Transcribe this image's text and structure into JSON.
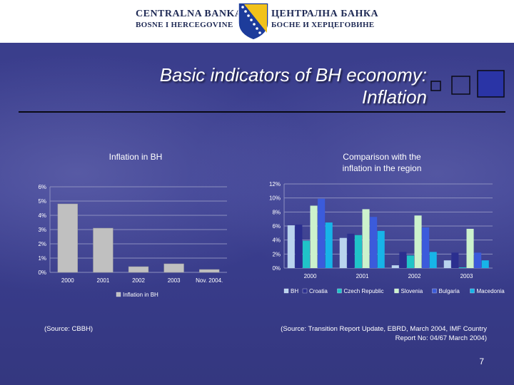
{
  "header": {
    "bank_name_latin_line1": "CENTRALNA BANKA",
    "bank_name_latin_line2": "BOSNE I HERCEGOVINE",
    "bank_name_cyrillic_line1": "ЦЕНТРАЛНА БАНКА",
    "bank_name_cyrillic_line2": "БОСНЕ И ХЕРЦЕГОВИНЕ"
  },
  "slide": {
    "title_line1": "Basic indicators of BH economy:",
    "title_line2": "Inflation",
    "page_number": "7",
    "source_left": "(Source: CBBH)",
    "source_right_line1": "(Source: Transition Report Update, EBRD, March 2004, IMF Country",
    "source_right_line2": "Report No: 04/67 March 2004)"
  },
  "colors": {
    "background": "#3b3f8f",
    "title_text": "#ffffff",
    "bar_gray": "#c0c0c0"
  },
  "chart_data": [
    {
      "type": "bar",
      "title": "Inflation in BH",
      "categories": [
        "2000",
        "2001",
        "2002",
        "2003",
        "Nov. 2004."
      ],
      "series": [
        {
          "name": "Inflation in BH",
          "color": "#c0c0c0",
          "values": [
            4.8,
            3.1,
            0.4,
            0.6,
            0.2
          ]
        }
      ],
      "yticks": [
        "0%",
        "1%",
        "2%",
        "3%",
        "4%",
        "5%",
        "6%"
      ],
      "ylim": [
        0,
        6
      ],
      "grid": true,
      "legend": "bottom"
    },
    {
      "type": "bar",
      "title_line1": "Comparison with the",
      "title_line2": "inflation in the region",
      "categories": [
        "2000",
        "2001",
        "2002",
        "2003"
      ],
      "series": [
        {
          "name": "BH",
          "color": "#b9d3ee",
          "values": [
            6.1,
            4.3,
            0.4,
            1.1
          ]
        },
        {
          "name": "Croatia",
          "color": "#2b2f8f",
          "values": [
            6.2,
            4.9,
            2.3,
            2.2
          ]
        },
        {
          "name": "Czech Republic",
          "color": "#20c4c8",
          "values": [
            3.9,
            4.7,
            1.8,
            0.1
          ]
        },
        {
          "name": "Slovenia",
          "color": "#ccf2cc",
          "values": [
            8.9,
            8.4,
            7.5,
            5.6
          ]
        },
        {
          "name": "Bulgaria",
          "color": "#3b5bdb",
          "values": [
            9.9,
            7.3,
            5.8,
            2.2
          ]
        },
        {
          "name": "Macedonia",
          "color": "#17b4e8",
          "values": [
            6.5,
            5.3,
            2.3,
            1.1
          ]
        }
      ],
      "yticks": [
        "0%",
        "2%",
        "4%",
        "6%",
        "8%",
        "10%",
        "12%"
      ],
      "ylim": [
        0,
        12
      ],
      "grid": true,
      "legend": "bottom"
    }
  ]
}
